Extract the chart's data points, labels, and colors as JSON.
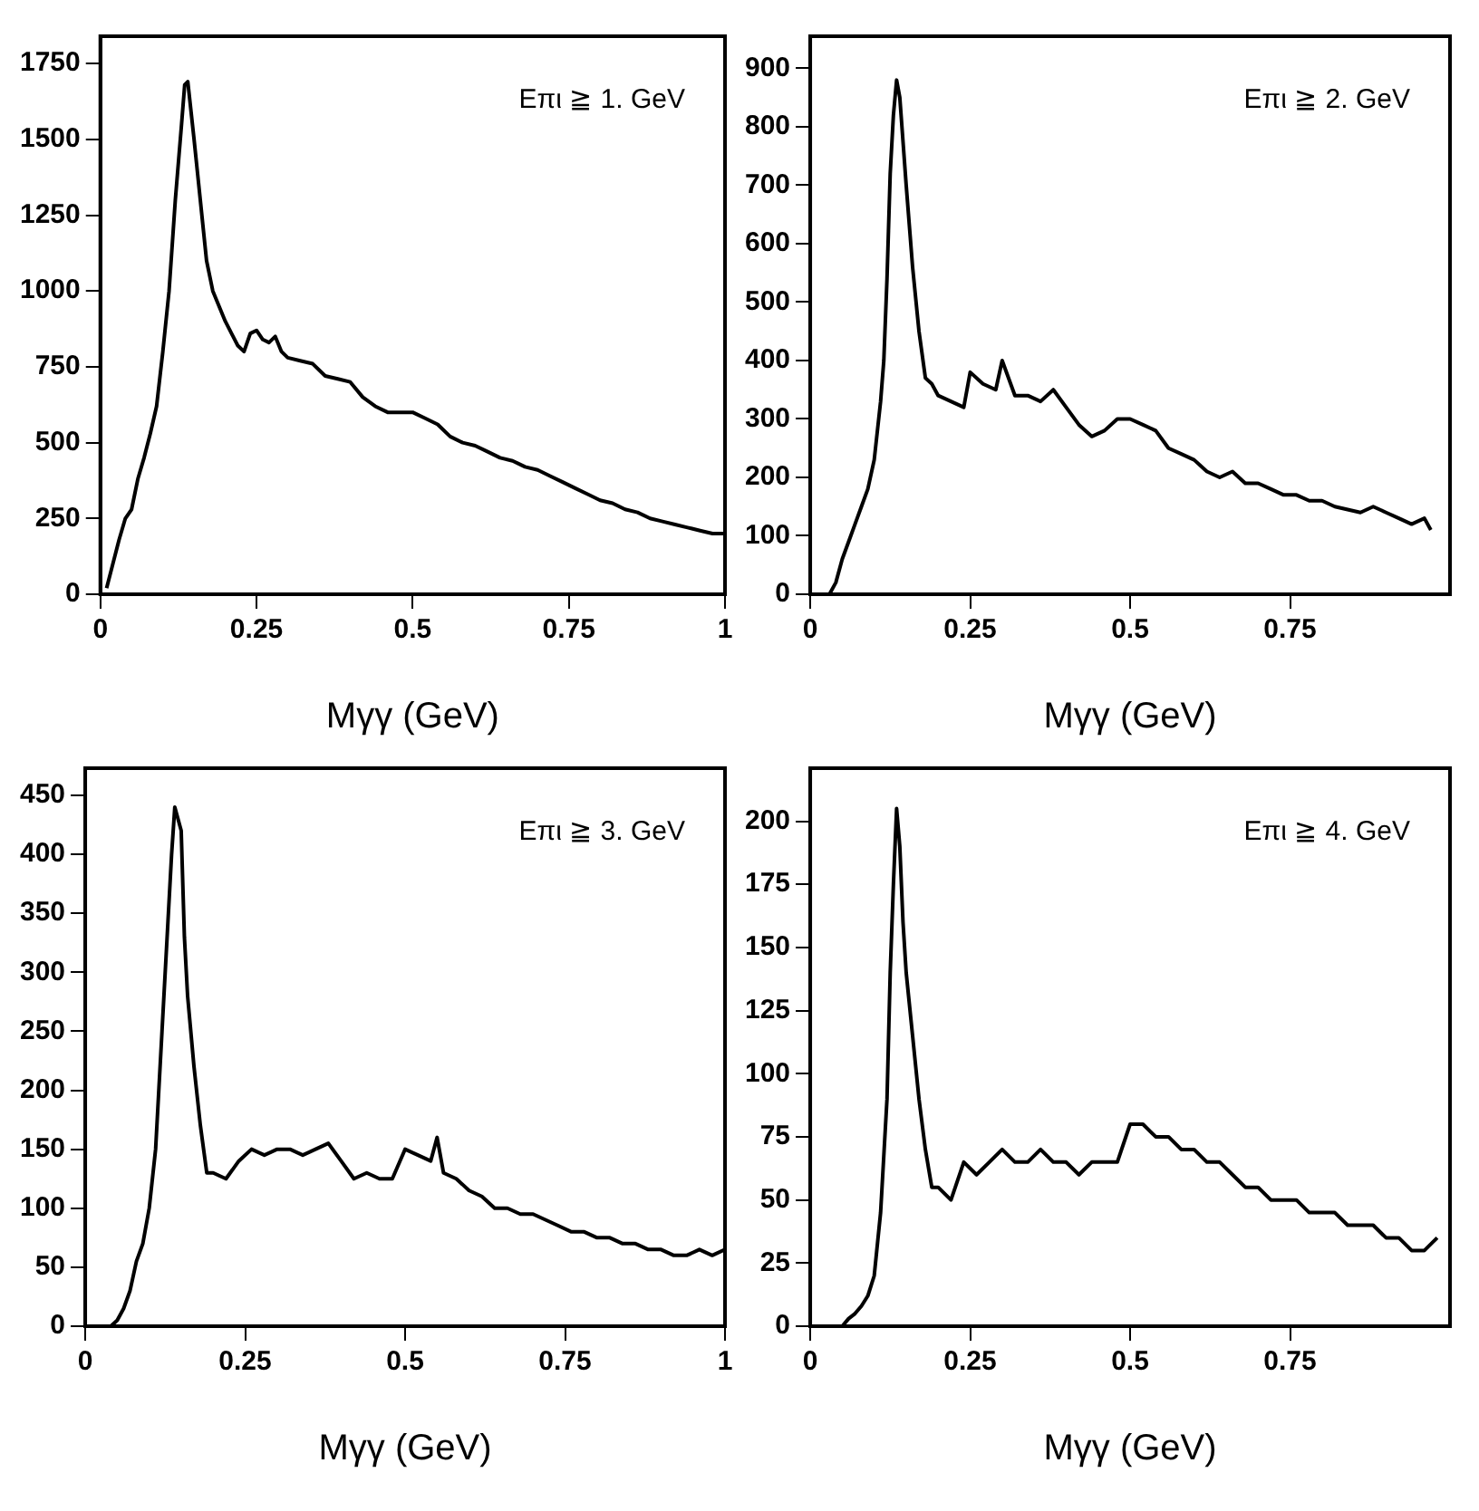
{
  "chart_data": [
    {
      "type": "line",
      "xlabel": "Mγγ (GeV)",
      "annotations": [
        "Eπι ≧ 1. GeV"
      ],
      "xlim": [
        0,
        1
      ],
      "xticks": [
        0,
        0.25,
        0.5,
        0.75,
        1
      ],
      "ylim": [
        0,
        1840
      ],
      "yticks": [
        0,
        250,
        500,
        750,
        1000,
        1250,
        1500,
        1750
      ],
      "grid": false,
      "legend": false,
      "marker": "none",
      "line_style": "solid",
      "series": [
        {
          "color": "#000000",
          "x": [
            0.01,
            0.02,
            0.03,
            0.04,
            0.05,
            0.06,
            0.07,
            0.08,
            0.09,
            0.1,
            0.11,
            0.12,
            0.13,
            0.135,
            0.14,
            0.15,
            0.16,
            0.17,
            0.18,
            0.19,
            0.2,
            0.21,
            0.22,
            0.23,
            0.24,
            0.25,
            0.26,
            0.27,
            0.28,
            0.29,
            0.3,
            0.32,
            0.34,
            0.36,
            0.38,
            0.4,
            0.42,
            0.44,
            0.46,
            0.48,
            0.5,
            0.52,
            0.54,
            0.56,
            0.58,
            0.6,
            0.62,
            0.64,
            0.66,
            0.68,
            0.7,
            0.72,
            0.74,
            0.76,
            0.78,
            0.8,
            0.82,
            0.84,
            0.86,
            0.88,
            0.9,
            0.92,
            0.94,
            0.96,
            0.98,
            1
          ],
          "values": [
            20,
            100,
            180,
            250,
            280,
            380,
            450,
            530,
            620,
            800,
            1000,
            1300,
            1550,
            1680,
            1690,
            1500,
            1300,
            1100,
            1000,
            950,
            900,
            860,
            820,
            800,
            860,
            870,
            840,
            830,
            850,
            800,
            780,
            770,
            760,
            720,
            710,
            700,
            650,
            620,
            600,
            600,
            600,
            580,
            560,
            520,
            500,
            490,
            470,
            450,
            440,
            420,
            410,
            390,
            370,
            350,
            330,
            310,
            300,
            280,
            270,
            250,
            240,
            230,
            220,
            210,
            200,
            200
          ]
        }
      ]
    },
    {
      "type": "line",
      "xlabel": "Mγγ (GeV)",
      "annotations": [
        "Eπι ≧ 2. GeV"
      ],
      "xlim": [
        0,
        1
      ],
      "xticks": [
        0,
        0.25,
        0.5,
        0.75
      ],
      "ylim": [
        0,
        955
      ],
      "yticks": [
        0,
        100,
        200,
        300,
        400,
        500,
        600,
        700,
        800,
        900
      ],
      "grid": false,
      "legend": false,
      "marker": "none",
      "line_style": "solid",
      "series": [
        {
          "color": "#000000",
          "x": [
            0.03,
            0.04,
            0.05,
            0.06,
            0.07,
            0.08,
            0.09,
            0.1,
            0.11,
            0.115,
            0.12,
            0.125,
            0.13,
            0.135,
            0.14,
            0.15,
            0.16,
            0.17,
            0.18,
            0.19,
            0.2,
            0.22,
            0.24,
            0.25,
            0.27,
            0.29,
            0.3,
            0.32,
            0.34,
            0.36,
            0.38,
            0.4,
            0.42,
            0.44,
            0.46,
            0.48,
            0.5,
            0.52,
            0.54,
            0.56,
            0.58,
            0.6,
            0.62,
            0.64,
            0.66,
            0.68,
            0.7,
            0.72,
            0.74,
            0.76,
            0.78,
            0.8,
            0.82,
            0.84,
            0.86,
            0.88,
            0.9,
            0.92,
            0.94,
            0.96,
            0.97
          ],
          "values": [
            0,
            20,
            60,
            90,
            120,
            150,
            180,
            230,
            330,
            400,
            540,
            720,
            820,
            880,
            850,
            700,
            560,
            450,
            370,
            360,
            340,
            330,
            320,
            380,
            360,
            350,
            400,
            340,
            340,
            330,
            350,
            320,
            290,
            270,
            280,
            300,
            300,
            290,
            280,
            250,
            240,
            230,
            210,
            200,
            210,
            190,
            190,
            180,
            170,
            170,
            160,
            160,
            150,
            145,
            140,
            150,
            140,
            130,
            120,
            130,
            110
          ]
        }
      ]
    },
    {
      "type": "line",
      "xlabel": "Mγγ (GeV)",
      "annotations": [
        "Eπι ≧ 3. GeV"
      ],
      "xlim": [
        0,
        1
      ],
      "xticks": [
        0,
        0.25,
        0.5,
        0.75,
        1
      ],
      "ylim": [
        0,
        473
      ],
      "yticks": [
        0,
        50,
        100,
        150,
        200,
        250,
        300,
        350,
        400,
        450
      ],
      "grid": false,
      "legend": false,
      "marker": "none",
      "line_style": "solid",
      "series": [
        {
          "color": "#000000",
          "x": [
            0.04,
            0.05,
            0.06,
            0.07,
            0.08,
            0.09,
            0.1,
            0.11,
            0.12,
            0.13,
            0.135,
            0.14,
            0.15,
            0.155,
            0.16,
            0.17,
            0.18,
            0.19,
            0.2,
            0.22,
            0.24,
            0.26,
            0.28,
            0.3,
            0.32,
            0.34,
            0.36,
            0.38,
            0.4,
            0.42,
            0.44,
            0.46,
            0.48,
            0.5,
            0.52,
            0.54,
            0.55,
            0.56,
            0.58,
            0.6,
            0.62,
            0.64,
            0.66,
            0.68,
            0.7,
            0.72,
            0.74,
            0.76,
            0.78,
            0.8,
            0.82,
            0.84,
            0.86,
            0.88,
            0.9,
            0.92,
            0.94,
            0.96,
            0.98,
            1
          ],
          "values": [
            0,
            5,
            15,
            30,
            55,
            70,
            100,
            150,
            250,
            350,
            400,
            440,
            420,
            330,
            280,
            220,
            170,
            130,
            130,
            125,
            140,
            150,
            145,
            150,
            150,
            145,
            150,
            155,
            140,
            125,
            130,
            125,
            125,
            150,
            145,
            140,
            160,
            130,
            125,
            115,
            110,
            100,
            100,
            95,
            95,
            90,
            85,
            80,
            80,
            75,
            75,
            70,
            70,
            65,
            65,
            60,
            60,
            65,
            60,
            65
          ]
        }
      ]
    },
    {
      "type": "line",
      "xlabel": "Mγγ (GeV)",
      "annotations": [
        "Eπι ≧ 4. GeV"
      ],
      "xlim": [
        0,
        1
      ],
      "xticks": [
        0,
        0.25,
        0.5,
        0.75
      ],
      "ylim": [
        0,
        221
      ],
      "yticks": [
        0,
        25,
        50,
        75,
        100,
        125,
        150,
        175,
        200
      ],
      "grid": false,
      "legend": false,
      "marker": "none",
      "line_style": "solid",
      "series": [
        {
          "color": "#000000",
          "x": [
            0.05,
            0.06,
            0.07,
            0.08,
            0.09,
            0.1,
            0.11,
            0.12,
            0.125,
            0.13,
            0.135,
            0.14,
            0.145,
            0.15,
            0.16,
            0.17,
            0.18,
            0.19,
            0.2,
            0.22,
            0.24,
            0.26,
            0.28,
            0.3,
            0.32,
            0.34,
            0.36,
            0.38,
            0.4,
            0.42,
            0.44,
            0.46,
            0.48,
            0.5,
            0.52,
            0.54,
            0.56,
            0.58,
            0.6,
            0.62,
            0.64,
            0.66,
            0.68,
            0.7,
            0.72,
            0.74,
            0.76,
            0.78,
            0.8,
            0.82,
            0.84,
            0.86,
            0.88,
            0.9,
            0.92,
            0.94,
            0.96,
            0.98
          ],
          "values": [
            0,
            3,
            5,
            8,
            12,
            20,
            45,
            90,
            140,
            175,
            205,
            190,
            160,
            140,
            115,
            90,
            70,
            55,
            55,
            50,
            65,
            60,
            65,
            70,
            65,
            65,
            70,
            65,
            65,
            60,
            65,
            65,
            65,
            80,
            80,
            75,
            75,
            70,
            70,
            65,
            65,
            60,
            55,
            55,
            50,
            50,
            50,
            45,
            45,
            45,
            40,
            40,
            40,
            35,
            35,
            30,
            30,
            35
          ]
        }
      ]
    }
  ]
}
